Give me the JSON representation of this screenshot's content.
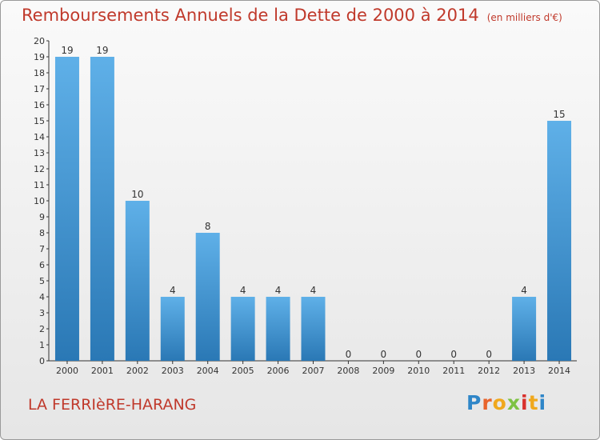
{
  "header": {
    "title": "Remboursements Annuels de la Dette de 2000 à 2014",
    "subtitle": "(en milliers d'€)"
  },
  "footer": {
    "commune": "LA FERRIèRE-HARANG",
    "logo_letters": [
      "P",
      "r",
      "o",
      "x",
      "i",
      "t",
      "i"
    ],
    "logo_colors": [
      "#2f86c8",
      "#e8642c",
      "#f0a81c",
      "#7dc242",
      "#d9302c",
      "#f0a81c",
      "#2f86c8"
    ]
  },
  "colors": {
    "bar_light": "#5fb0e8",
    "bar_dark": "#2a78b5",
    "axis": "#333333",
    "title": "#c0392b"
  },
  "chart_data": {
    "type": "bar",
    "title": "Remboursements Annuels de la Dette de 2000 à 2014",
    "subtitle": "(en milliers d'€)",
    "xlabel": "",
    "ylabel": "",
    "categories": [
      "2000",
      "2001",
      "2002",
      "2003",
      "2004",
      "2005",
      "2006",
      "2007",
      "2008",
      "2009",
      "2010",
      "2011",
      "2012",
      "2013",
      "2014"
    ],
    "values": [
      19,
      19,
      10,
      4,
      8,
      4,
      4,
      4,
      0,
      0,
      0,
      0,
      0,
      4,
      15
    ],
    "data_labels": [
      "19",
      "19",
      "10",
      "4",
      "8",
      "4",
      "4",
      "4",
      "0",
      "0",
      "0",
      "0",
      "0",
      "4",
      "15"
    ],
    "ylim": [
      0,
      20
    ],
    "yticks": [
      "0",
      "1",
      "2",
      "3",
      "4",
      "5",
      "6",
      "7",
      "8",
      "9",
      "10",
      "11",
      "12",
      "13",
      "14",
      "15",
      "16",
      "17",
      "18",
      "19",
      "20"
    ],
    "grid": false,
    "legend": "none"
  }
}
